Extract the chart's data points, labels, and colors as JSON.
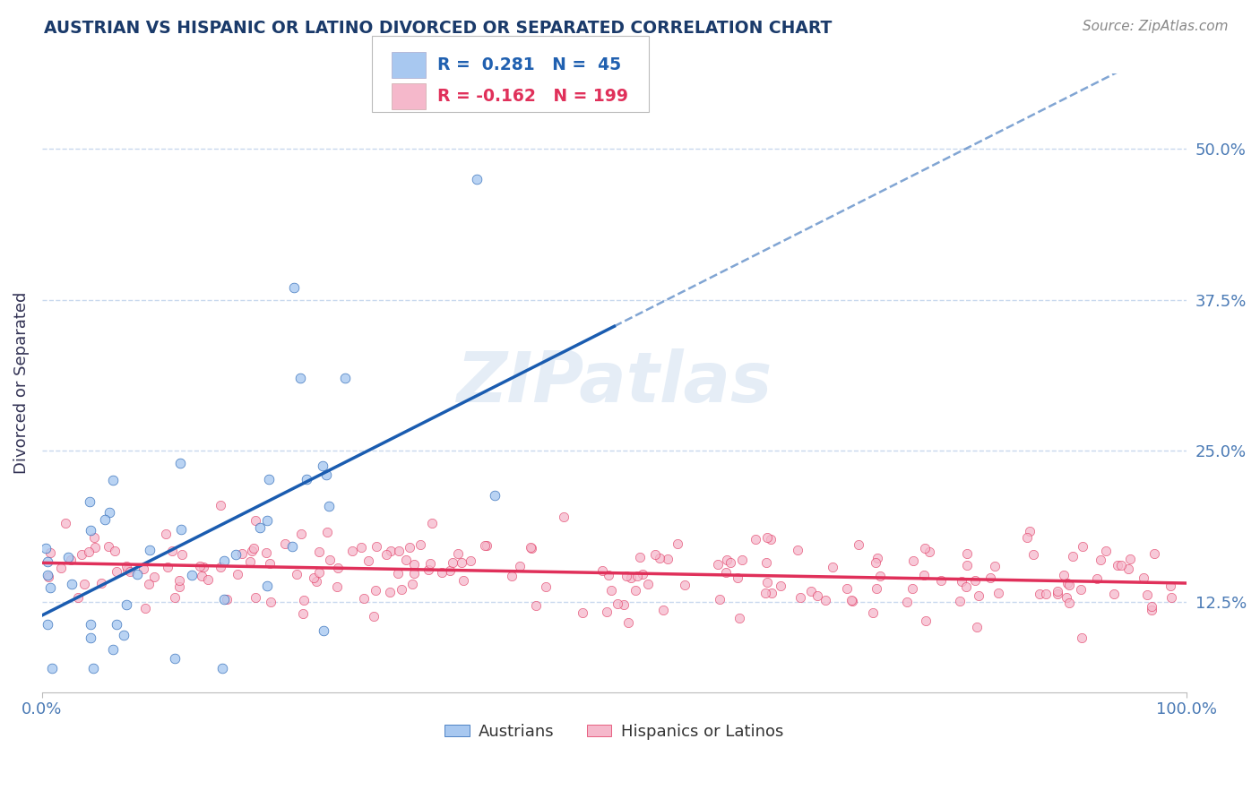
{
  "title": "AUSTRIAN VS HISPANIC OR LATINO DIVORCED OR SEPARATED CORRELATION CHART",
  "source_text": "Source: ZipAtlas.com",
  "ylabel": "Divorced or Separated",
  "xlim": [
    0.0,
    1.0
  ],
  "ylim": [
    0.05,
    0.5625
  ],
  "yticks": [
    0.125,
    0.25,
    0.375,
    0.5
  ],
  "ytick_labels": [
    "12.5%",
    "25.0%",
    "37.5%",
    "50.0%"
  ],
  "xticks": [
    0.0,
    1.0
  ],
  "xtick_labels": [
    "0.0%",
    "100.0%"
  ],
  "blue_color": "#a8c8f0",
  "pink_color": "#f5b8cb",
  "blue_line_color": "#1a5cb0",
  "pink_line_color": "#e0305a",
  "grid_color": "#c8d8ee",
  "background_color": "#ffffff",
  "legend_blue_label": "Austrians",
  "legend_pink_label": "Hispanics or Latinos",
  "R_blue": 0.281,
  "N_blue": 45,
  "R_pink": -0.162,
  "N_pink": 199,
  "watermark": "ZIPatlas",
  "title_color": "#1a3a6a",
  "axis_label_color": "#333355",
  "tick_label_color": "#4a7ab5",
  "legend_text_color": "#2060b0",
  "source_color": "#888888"
}
